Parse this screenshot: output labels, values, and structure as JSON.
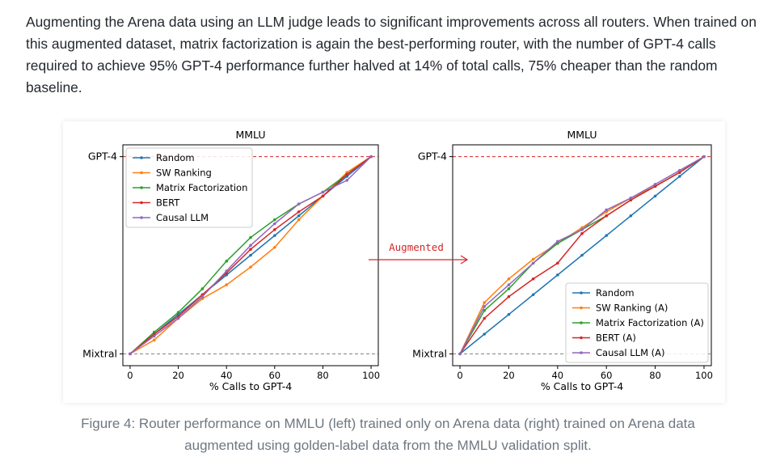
{
  "paragraph": "Augmenting the Arena data using an LLM judge leads to significant improvements across all routers. When trained on this augmented dataset, matrix factorization is again the best-performing router, with the number of GPT-4 calls required to achieve 95% GPT-4 performance further halved at 14% of total calls, 75% cheaper than the random baseline.",
  "arrow_label": "Augmented",
  "caption_line1": "Figure 4: Router performance on MMLU (left) trained only on Arena data (right) trained on Arena data",
  "caption_line2": "augmented using golden-label data from the MMLU validation split.",
  "colors": {
    "random": "#1f77b4",
    "sw": "#ff7f0e",
    "mf": "#2ca02c",
    "bert": "#d62728",
    "causal": "#9467bd",
    "gpt4_line": "#d62728",
    "mixtral_line": "#7f7f7f",
    "arrow": "#d62728"
  },
  "chart_data": [
    {
      "type": "line",
      "title": "MMLU",
      "xlabel": "% Calls to GPT-4",
      "ylabel": "",
      "xlim": [
        -3,
        103
      ],
      "ylim": [
        -0.06,
        1.06
      ],
      "xticks": [
        "0",
        "20",
        "40",
        "60",
        "80",
        "100"
      ],
      "yticks": [
        "Mixtral",
        "GPT-4"
      ],
      "legend_loc": "upper-left",
      "x": [
        0,
        10,
        20,
        30,
        40,
        50,
        60,
        70,
        80,
        90,
        100
      ],
      "series": [
        {
          "name": "Random",
          "key": "random",
          "values": [
            0,
            0.1,
            0.2,
            0.3,
            0.4,
            0.5,
            0.6,
            0.7,
            0.8,
            0.9,
            1.0
          ]
        },
        {
          "name": "SW Ranking",
          "key": "sw",
          "values": [
            0,
            0.07,
            0.18,
            0.28,
            0.35,
            0.44,
            0.54,
            0.68,
            0.8,
            0.92,
            1.0
          ]
        },
        {
          "name": "Matrix Factorization",
          "key": "mf",
          "values": [
            0,
            0.11,
            0.21,
            0.33,
            0.47,
            0.59,
            0.68,
            0.76,
            0.82,
            0.91,
            1.0
          ]
        },
        {
          "name": "BERT",
          "key": "bert",
          "values": [
            0,
            0.1,
            0.19,
            0.3,
            0.41,
            0.53,
            0.63,
            0.72,
            0.8,
            0.91,
            1.0
          ]
        },
        {
          "name": "Causal LLM",
          "key": "causal",
          "values": [
            0,
            0.09,
            0.18,
            0.29,
            0.42,
            0.55,
            0.66,
            0.76,
            0.82,
            0.88,
            1.0
          ]
        }
      ]
    },
    {
      "type": "line",
      "title": "MMLU",
      "xlabel": "% Calls to GPT-4",
      "ylabel": "",
      "xlim": [
        -3,
        103
      ],
      "ylim": [
        -0.06,
        1.06
      ],
      "xticks": [
        "0",
        "20",
        "40",
        "60",
        "80",
        "100"
      ],
      "yticks": [
        "Mixtral",
        "GPT-4"
      ],
      "legend_loc": "lower-right",
      "x": [
        0,
        10,
        20,
        30,
        40,
        50,
        60,
        70,
        80,
        90,
        100
      ],
      "series": [
        {
          "name": "Random",
          "key": "random",
          "values": [
            0,
            0.1,
            0.2,
            0.3,
            0.4,
            0.5,
            0.6,
            0.7,
            0.8,
            0.9,
            1.0
          ]
        },
        {
          "name": "SW Ranking (A)",
          "key": "sw",
          "values": [
            0,
            0.26,
            0.38,
            0.48,
            0.56,
            0.64,
            0.72,
            0.79,
            0.85,
            0.92,
            1.0
          ]
        },
        {
          "name": "Matrix Factorization (A)",
          "key": "mf",
          "values": [
            0,
            0.22,
            0.33,
            0.46,
            0.56,
            0.63,
            0.7,
            0.78,
            0.85,
            0.92,
            1.0
          ]
        },
        {
          "name": "BERT (A)",
          "key": "bert",
          "values": [
            0,
            0.18,
            0.29,
            0.38,
            0.46,
            0.61,
            0.7,
            0.78,
            0.85,
            0.92,
            1.0
          ]
        },
        {
          "name": "Causal LLM (A)",
          "key": "causal",
          "values": [
            0,
            0.24,
            0.35,
            0.46,
            0.57,
            0.63,
            0.73,
            0.79,
            0.86,
            0.93,
            1.0
          ]
        }
      ]
    }
  ]
}
